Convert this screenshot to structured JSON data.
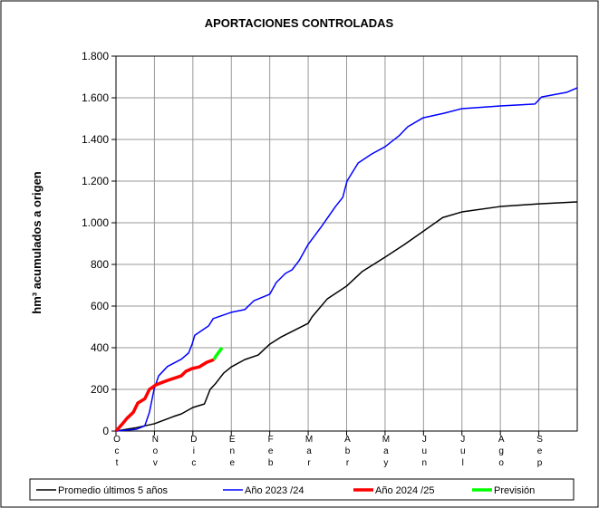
{
  "chart_data": {
    "type": "line",
    "title": "APORTACIONES CONTROLADAS",
    "y_label": "hm³ acumulados a origen",
    "categories": [
      "Oct",
      "Nov",
      "Dic",
      "Ene",
      "Feb",
      "Mar",
      "Abr",
      "May",
      "Jun",
      "Jul",
      "Ago",
      "Sep"
    ],
    "xlim": [
      0,
      12
    ],
    "ylim": [
      0,
      1800
    ],
    "yticks": [
      0,
      200,
      400,
      600,
      800,
      {
        "value": 1000,
        "label": "1.000"
      },
      {
        "value": 1200,
        "label": "1.200"
      },
      {
        "value": 1400,
        "label": "1.400"
      },
      {
        "value": 1600,
        "label": "1.600"
      },
      {
        "value": 1800,
        "label": "1.800"
      }
    ],
    "grid": true,
    "legend": "bottom",
    "series": [
      {
        "name": "Promedio últimos 5 años",
        "color": "#000000",
        "line_width": 1.5,
        "x": [
          0,
          0.5,
          1,
          1.5,
          1.7,
          2,
          2.3,
          2.45,
          2.6,
          2.8,
          3,
          3.35,
          3.7,
          4,
          4.3,
          5,
          5.1,
          5.5,
          6,
          6.4,
          7,
          7.5,
          8,
          8.5,
          9,
          10,
          11,
          12
        ],
        "values": [
          0,
          15,
          35,
          70,
          82,
          113,
          130,
          200,
          230,
          278,
          308,
          343,
          365,
          417,
          452,
          517,
          548,
          635,
          696,
          765,
          835,
          895,
          960,
          1025,
          1052,
          1078,
          1091,
          1100
        ]
      },
      {
        "name": "Año 2023 /24",
        "color": "#0000ff",
        "line_width": 1.5,
        "x": [
          0,
          0.52,
          0.75,
          0.87,
          0.99,
          1.11,
          1.34,
          1.7,
          1.89,
          1.98,
          2.05,
          2.41,
          2.53,
          3,
          3.35,
          3.59,
          4,
          4.17,
          4.41,
          4.58,
          4.76,
          5,
          5.35,
          5.71,
          5.9,
          6.01,
          6.3,
          6.65,
          7,
          7.36,
          7.59,
          7.99,
          8.54,
          9,
          10,
          10.9,
          11.07,
          11.72,
          12
        ],
        "values": [
          0,
          8,
          25,
          90,
          200,
          265,
          310,
          345,
          375,
          417,
          460,
          505,
          540,
          570,
          583,
          626,
          657,
          713,
          757,
          774,
          817,
          896,
          983,
          1078,
          1122,
          1200,
          1287,
          1330,
          1365,
          1417,
          1461,
          1504,
          1526,
          1548,
          1561,
          1570,
          1604,
          1626,
          1648
        ]
      },
      {
        "name": "Año 2024 /25",
        "color": "#ff0000",
        "line_width": 3.5,
        "x": [
          0,
          0.17,
          0.28,
          0.45,
          0.57,
          0.75,
          0.87,
          1.04,
          1.34,
          1.7,
          1.82,
          1.98,
          2.17,
          2.36,
          2.55
        ],
        "values": [
          0,
          35,
          60,
          90,
          135,
          155,
          200,
          222,
          243,
          265,
          287,
          300,
          308,
          330,
          343
        ]
      },
      {
        "name": "Previsión",
        "color": "#00ff00",
        "line_width": 3.5,
        "x": [
          2.55,
          2.6,
          2.76
        ],
        "values": [
          343,
          360,
          400
        ]
      }
    ]
  }
}
